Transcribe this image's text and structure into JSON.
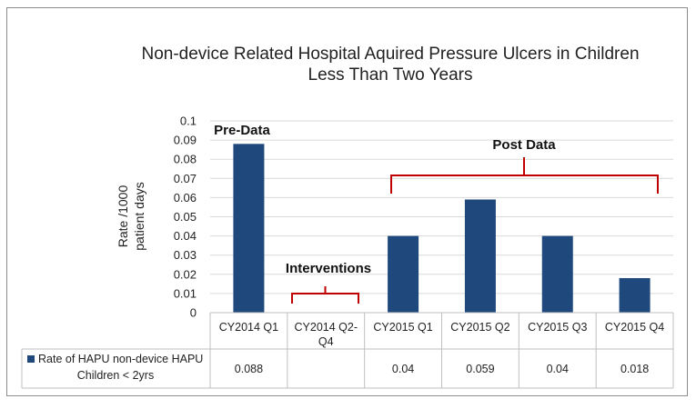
{
  "chart_data": {
    "type": "bar",
    "title_lines": [
      "Non-device Related Hospital Aquired Pressure Ulcers in Children",
      "Less Than Two Years"
    ],
    "ylabel_lines": [
      "Rate /1000",
      "patient days"
    ],
    "ylim": [
      0,
      0.1
    ],
    "yticks": [
      "0",
      "0.01",
      "0.02",
      "0.03",
      "0.04",
      "0.05",
      "0.06",
      "0.07",
      "0.08",
      "0.09",
      "0.1"
    ],
    "grid": true,
    "categories": [
      [
        "CY2014 Q1"
      ],
      [
        "CY2014 Q2-",
        "Q4"
      ],
      [
        "CY2015 Q1"
      ],
      [
        "CY2015 Q2"
      ],
      [
        "CY2015 Q3"
      ],
      [
        "CY2015 Q4"
      ]
    ],
    "series": [
      {
        "name_lines": [
          "Rate of HAPU non-device HAPU",
          "Children < 2yrs"
        ],
        "values": [
          0.088,
          null,
          0.04,
          0.059,
          0.04,
          0.018
        ],
        "table_values": [
          "0.088",
          "",
          "0.04",
          "0.059",
          "0.04",
          "0.018"
        ],
        "color": "#1f497d"
      }
    ],
    "annotations": {
      "pre": "Pre-Data",
      "interventions": "Interventions",
      "post": "Post Data",
      "bracket_color": "#c00000"
    },
    "data_table": true
  }
}
